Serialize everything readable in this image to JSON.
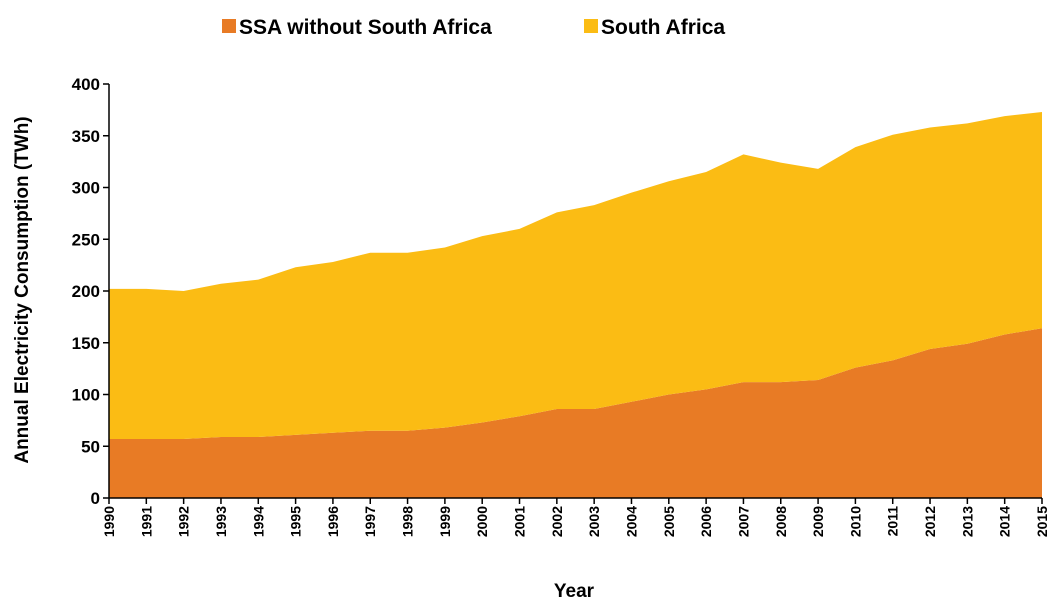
{
  "chart_data": {
    "type": "area",
    "stacked": true,
    "title": "",
    "xlabel": "Year",
    "ylabel": "Annual Electricity Consumption (TWh)",
    "ylim": [
      0,
      400
    ],
    "yticks": [
      0,
      50,
      100,
      150,
      200,
      250,
      300,
      350,
      400
    ],
    "grid": false,
    "legend_position": "top",
    "categories": [
      "1990",
      "1991",
      "1992",
      "1993",
      "1994",
      "1995",
      "1996",
      "1997",
      "1998",
      "1999",
      "2000",
      "2001",
      "2002",
      "2003",
      "2004",
      "2005",
      "2006",
      "2007",
      "2008",
      "2009",
      "2010",
      "2011",
      "2012",
      "2013",
      "2014",
      "2015"
    ],
    "series": [
      {
        "name": "SSA without South Africa",
        "color": "#E87B25",
        "values": [
          57,
          57,
          57,
          59,
          59,
          61,
          63,
          65,
          65,
          68,
          73,
          79,
          86,
          86,
          93,
          100,
          105,
          112,
          112,
          114,
          126,
          133,
          144,
          149,
          158,
          164
        ]
      },
      {
        "name": "South Africa",
        "color": "#FBBC14",
        "values": [
          145,
          145,
          143,
          148,
          152,
          162,
          165,
          172,
          172,
          174,
          180,
          181,
          190,
          197,
          202,
          206,
          210,
          220,
          212,
          204,
          213,
          218,
          214,
          213,
          211,
          209
        ]
      }
    ]
  }
}
